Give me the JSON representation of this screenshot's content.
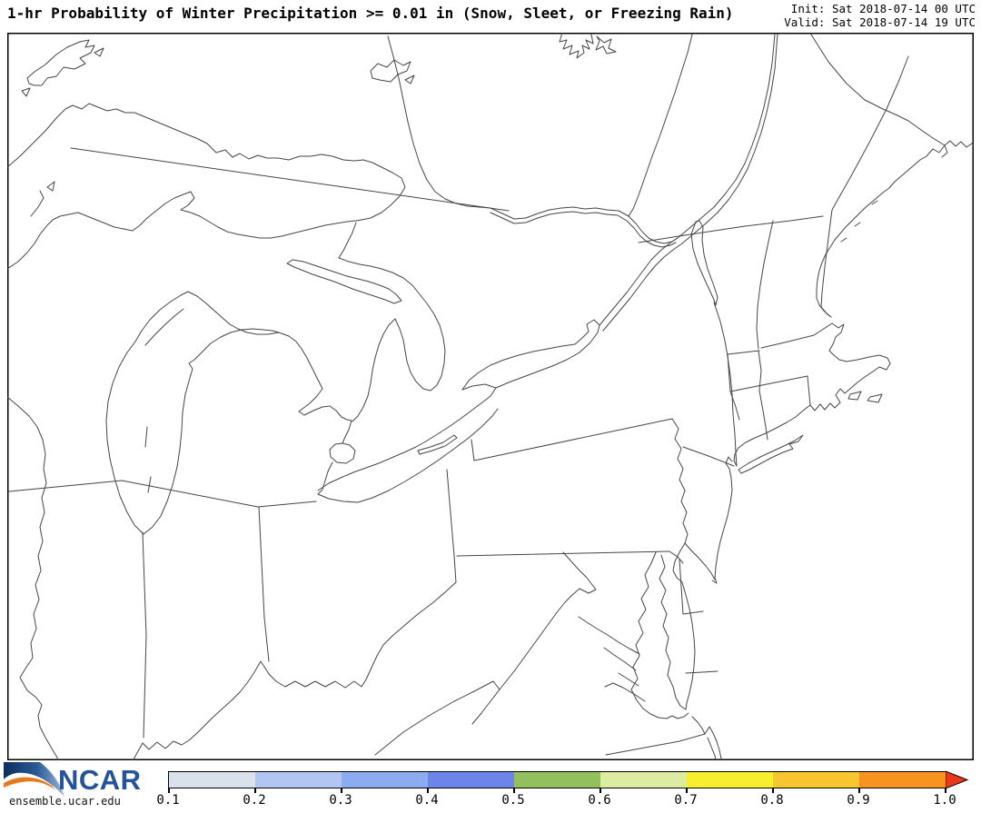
{
  "header": {
    "title": "1-hr Probability of Winter Precipitation >= 0.01 in (Snow, Sleet, or Freezing Rain)",
    "init": "Init: Sat 2018-07-14 00 UTC",
    "valid": "Valid: Sat 2018-07-14 19 UTC"
  },
  "footer": {
    "logo_text": "NCAR",
    "site_text": "ensemble.ucar.edu"
  },
  "colorbar": {
    "tick_labels": [
      "0.1",
      "0.2",
      "0.3",
      "0.4",
      "0.5",
      "0.6",
      "0.7",
      "0.8",
      "0.9",
      "1.0"
    ],
    "segment_colors": [
      "#d9e1ec",
      "#b1c6f2",
      "#8cacf2",
      "#6d85e9",
      "#92c05d",
      "#dcecа1",
      "#f8ee30",
      "#f8c631",
      "#f6941f"
    ],
    "segment_colors_fixed": [
      "#d9e1ec",
      "#b1c6f2",
      "#8cacf2",
      "#6d85e9",
      "#92c05d",
      "#dceca1",
      "#f8ee30",
      "#f8c631",
      "#f6941f"
    ],
    "arrow_color": "#e8391d"
  },
  "chart_data": {
    "type": "heatmap",
    "title": "1-hr Probability of Winter Precipitation >= 0.01 in (Snow, Sleet, or Freezing Rain)",
    "region": "Great Lakes / Northeast US outline basemap",
    "legend": {
      "label_values": [
        0.1,
        0.2,
        0.3,
        0.4,
        0.5,
        0.6,
        0.7,
        0.8,
        0.9,
        1.0
      ],
      "colors": [
        "#d9e1ec",
        "#b1c6f2",
        "#8cacf2",
        "#6d85e9",
        "#92c05d",
        "#dceca1",
        "#f8ee30",
        "#f8c631",
        "#f6941f"
      ],
      "position": "bottom"
    },
    "values": []
  }
}
